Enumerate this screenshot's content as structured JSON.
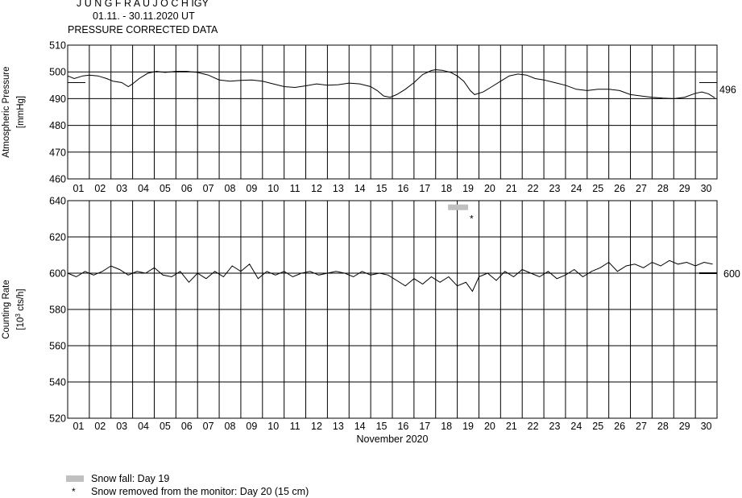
{
  "header": {
    "station": "J U N G F R A U J O C H  IGY",
    "period": "01.11. - 30.11.2020  UT",
    "subtitle": "PRESSURE CORRECTED DATA"
  },
  "legend": {
    "snow_fall": "Snow fall: Day 19",
    "snow_removed": "Snow removed from the monitor: Day 20 (15 cm)",
    "marker_symbol": "*"
  },
  "colors": {
    "line": "#000000",
    "snow_bar": "#c0c0c0",
    "background": "#ffffff"
  },
  "chart_data": [
    {
      "type": "line",
      "panel": "pressure",
      "ylabel": "Atmospheric Pressure",
      "yunit": "[mmHg]",
      "ylim": [
        460,
        510
      ],
      "yticks": [
        "510",
        "500",
        "490",
        "480",
        "470",
        "460"
      ],
      "xlim": [
        1,
        31
      ],
      "x_tick_labels": [
        "01",
        "02",
        "03",
        "04",
        "05",
        "06",
        "07",
        "08",
        "09",
        "10",
        "11",
        "12",
        "13",
        "14",
        "15",
        "16",
        "17",
        "18",
        "19",
        "20",
        "21",
        "22",
        "23",
        "24",
        "25",
        "26",
        "27",
        "28",
        "29",
        "30"
      ],
      "reference_value": 496,
      "reference_label": "496",
      "grid": true,
      "series": [
        {
          "x": [
            1.0,
            1.3,
            1.7,
            2.0,
            2.4,
            2.8,
            3.1,
            3.5,
            3.8,
            4.0,
            4.3,
            4.7,
            5.1,
            5.5,
            6.0,
            6.5,
            7.0,
            7.5,
            8.0,
            8.5,
            9.0,
            9.5,
            10.0,
            10.5,
            11.0,
            11.5,
            12.0,
            12.5,
            13.0,
            13.5,
            14.0,
            14.5,
            15.0,
            15.3,
            15.6,
            15.9,
            16.2,
            16.6,
            17.0,
            17.4,
            17.8,
            18.0,
            18.3,
            18.7,
            19.0,
            19.3,
            19.6,
            19.8,
            20.2,
            20.6,
            21.0,
            21.4,
            21.8,
            22.2,
            22.6,
            23.0,
            23.5,
            24.0,
            24.5,
            25.0,
            25.5,
            26.0,
            26.5,
            27.0,
            27.5,
            28.0,
            28.5,
            29.0,
            29.5,
            30.0,
            30.3,
            30.6,
            30.9
          ],
          "y": [
            498.5,
            497.5,
            498.5,
            498.8,
            498.5,
            497.5,
            496.5,
            496.0,
            494.5,
            495.5,
            497.5,
            499.5,
            500.2,
            499.8,
            500.2,
            500.2,
            499.8,
            498.8,
            497.0,
            496.5,
            496.8,
            497.0,
            496.5,
            495.5,
            494.5,
            494.2,
            494.8,
            495.5,
            495.0,
            495.2,
            495.8,
            495.5,
            494.5,
            493.0,
            491.0,
            490.5,
            491.5,
            493.5,
            496.0,
            499.0,
            500.5,
            500.8,
            500.6,
            499.8,
            498.5,
            496.5,
            493.0,
            491.5,
            492.5,
            494.5,
            496.5,
            498.5,
            499.2,
            498.8,
            497.5,
            497.0,
            496.0,
            495.0,
            493.5,
            493.0,
            493.5,
            493.5,
            493.0,
            491.5,
            491.0,
            490.5,
            490.2,
            490.0,
            490.5,
            492.0,
            492.5,
            491.8,
            490.3
          ]
        }
      ]
    },
    {
      "type": "line",
      "panel": "counting_rate",
      "ylabel": "Counting Rate",
      "yunit": "[10³ cts/h]",
      "ylim": [
        520,
        640
      ],
      "yticks": [
        "640",
        "620",
        "600",
        "580",
        "560",
        "540",
        "520"
      ],
      "xlim": [
        1,
        31
      ],
      "x_tick_labels": [
        "01",
        "02",
        "03",
        "04",
        "05",
        "06",
        "07",
        "08",
        "09",
        "10",
        "11",
        "12",
        "13",
        "14",
        "15",
        "16",
        "17",
        "18",
        "19",
        "20",
        "21",
        "22",
        "23",
        "24",
        "25",
        "26",
        "27",
        "28",
        "29",
        "30"
      ],
      "xlabel": "November 2020",
      "reference_value": 600,
      "reference_label": "600",
      "snow_fall_bar": {
        "day_start": 19,
        "day_end": 20,
        "y": 637
      },
      "snow_removed_marker": {
        "day": 20,
        "y": 631
      },
      "grid": true,
      "series": [
        {
          "x": [
            1.0,
            1.4,
            1.8,
            2.2,
            2.6,
            3.0,
            3.4,
            3.8,
            4.2,
            4.6,
            5.0,
            5.4,
            5.8,
            6.2,
            6.6,
            7.0,
            7.4,
            7.8,
            8.2,
            8.6,
            9.0,
            9.4,
            9.8,
            10.2,
            10.6,
            11.0,
            11.4,
            11.8,
            12.2,
            12.6,
            13.0,
            13.4,
            13.8,
            14.2,
            14.6,
            15.0,
            15.4,
            15.8,
            16.2,
            16.6,
            17.0,
            17.4,
            17.8,
            18.2,
            18.6,
            19.0,
            19.4,
            19.7,
            20.0,
            20.4,
            20.8,
            21.2,
            21.6,
            22.0,
            22.4,
            22.8,
            23.2,
            23.6,
            24.0,
            24.4,
            24.8,
            25.2,
            25.6,
            26.0,
            26.4,
            26.8,
            27.2,
            27.6,
            28.0,
            28.4,
            28.8,
            29.2,
            29.6,
            30.0,
            30.4,
            30.8
          ],
          "y": [
            600,
            598,
            601,
            599,
            601,
            604,
            602,
            599,
            601,
            600,
            603,
            599,
            598,
            601,
            595,
            600,
            597,
            601,
            598,
            604,
            601,
            605,
            597,
            601,
            599,
            601,
            598,
            600,
            601,
            599,
            600,
            601,
            600,
            598,
            601,
            599,
            600,
            599,
            596,
            593,
            597,
            594,
            598,
            595,
            598,
            593,
            595,
            590,
            598,
            600,
            596,
            601,
            598,
            602,
            600,
            598,
            601,
            597,
            599,
            602,
            598,
            601,
            603,
            606,
            601,
            604,
            605,
            603,
            606,
            604,
            607,
            605,
            606,
            604,
            606,
            605
          ]
        }
      ]
    }
  ]
}
